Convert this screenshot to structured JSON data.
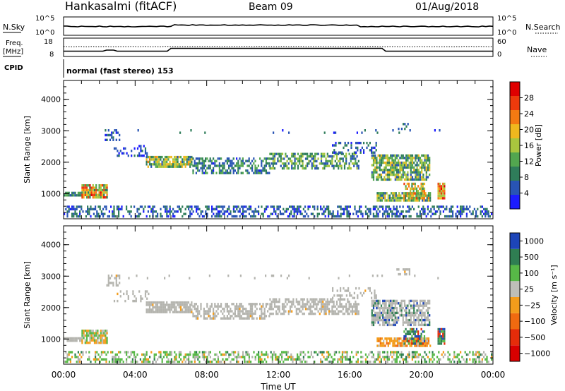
{
  "header": {
    "station": "Hankasalmi (fitACF)",
    "beam": "Beam 09",
    "date": "01/Aug/2018"
  },
  "params": {
    "nsky_label": "N.Sky",
    "nsearch_label": "N.Search",
    "nsky_ticks": [
      "10^5",
      "10^0"
    ],
    "nsearch_ticks": [
      "10^5",
      "10^0"
    ],
    "freq_label_1": "Freq.",
    "freq_label_2": "[MHz]",
    "freq_ticks": [
      "18",
      "8"
    ],
    "nave_label": "Nave",
    "nave_ticks": [
      "60",
      "0"
    ],
    "cpid_label": "CPID",
    "cpid_text": "normal (fast stereo) 153"
  },
  "colors": {
    "power": [
      "#1c1cff",
      "#2854b4",
      "#2f7d5a",
      "#52a64f",
      "#a9c63e",
      "#f0b81e",
      "#f47a12",
      "#ee3a0c",
      "#e00000"
    ],
    "velocity_pos": [
      "#1d45b8",
      "#2f7e52",
      "#57b847"
    ],
    "velocity_zero": "#bebeb8",
    "velocity_neg": [
      "#f39c1b",
      "#f06a10",
      "#e52c0a",
      "#d80000"
    ],
    "ground_scatter": "#b4b4ae"
  },
  "chart_data": [
    {
      "type": "heatmap",
      "name": "power",
      "ylabel": "Slant Range [km]",
      "yticks": [
        "1000",
        "2000",
        "3000",
        "4000"
      ],
      "ylim": [
        200,
        4600
      ],
      "xlim": [
        0,
        24
      ],
      "colorbar_label": "Power [dB]",
      "colorbar_ticks": [
        "4",
        "8",
        "12",
        "16",
        "20",
        "24",
        "28"
      ],
      "colorbar_range": [
        0,
        32
      ],
      "scatter_regions": [
        {
          "t0": 0.0,
          "t1": 24.0,
          "r0": 250,
          "r1": 620,
          "density": 0.45,
          "p": [
            2,
            10
          ]
        },
        {
          "t0": 0.0,
          "t1": 1.0,
          "r0": 880,
          "r1": 1060,
          "density": 0.85,
          "p": [
            4,
            12
          ]
        },
        {
          "t0": 1.0,
          "t1": 2.5,
          "r0": 820,
          "r1": 1300,
          "density": 0.9,
          "p": [
            8,
            30
          ]
        },
        {
          "t0": 2.3,
          "t1": 3.2,
          "r0": 2700,
          "r1": 3050,
          "density": 0.5,
          "p": [
            3,
            10
          ]
        },
        {
          "t0": 2.8,
          "t1": 4.8,
          "r0": 2150,
          "r1": 2550,
          "density": 0.25,
          "p": [
            2,
            8
          ]
        },
        {
          "t0": 4.6,
          "t1": 7.2,
          "r0": 1850,
          "r1": 2200,
          "density": 0.85,
          "p": [
            6,
            22
          ]
        },
        {
          "t0": 7.2,
          "t1": 11.5,
          "r0": 1650,
          "r1": 2150,
          "density": 0.55,
          "p": [
            3,
            14
          ]
        },
        {
          "t0": 11.5,
          "t1": 16.5,
          "r0": 1750,
          "r1": 2300,
          "density": 0.6,
          "p": [
            4,
            18
          ]
        },
        {
          "t0": 15.0,
          "t1": 17.5,
          "r0": 2250,
          "r1": 2650,
          "density": 0.35,
          "p": [
            2,
            10
          ]
        },
        {
          "t0": 17.2,
          "t1": 20.5,
          "r0": 1400,
          "r1": 2250,
          "density": 0.75,
          "p": [
            5,
            20
          ]
        },
        {
          "t0": 17.5,
          "t1": 20.5,
          "r0": 750,
          "r1": 1050,
          "density": 0.85,
          "p": [
            6,
            22
          ]
        },
        {
          "t0": 19.0,
          "t1": 20.2,
          "r0": 850,
          "r1": 1350,
          "density": 0.6,
          "p": [
            10,
            26
          ]
        },
        {
          "t0": 20.9,
          "t1": 21.3,
          "r0": 800,
          "r1": 1350,
          "density": 0.9,
          "p": [
            14,
            30
          ]
        },
        {
          "t0": 18.6,
          "t1": 19.4,
          "r0": 3000,
          "r1": 3250,
          "density": 0.4,
          "p": [
            3,
            9
          ]
        },
        {
          "t0": 3.0,
          "t1": 22.0,
          "r0": 2900,
          "r1": 3050,
          "density": 0.05,
          "p": [
            2,
            8
          ]
        }
      ]
    },
    {
      "type": "heatmap",
      "name": "velocity",
      "ylabel": "Slant Range [km]",
      "yticks": [
        "1000",
        "2000",
        "3000",
        "4000"
      ],
      "ylim": [
        200,
        4600
      ],
      "xlim": [
        0,
        24
      ],
      "xticks": [
        "00:00",
        "04:00",
        "08:00",
        "12:00",
        "16:00",
        "20:00",
        "00:00"
      ],
      "xlabel": "Time UT",
      "colorbar_label": "Velocity [m s⁻¹]",
      "colorbar_ticks": [
        "1000",
        "500",
        "100",
        "25",
        "−25",
        "−100",
        "−500",
        "−1000"
      ],
      "scatter_regions": [
        {
          "t0": 0.0,
          "t1": 24.0,
          "r0": 250,
          "r1": 620,
          "density": 0.45,
          "v": "ground_mixed"
        },
        {
          "t0": 0.0,
          "t1": 1.0,
          "r0": 880,
          "r1": 1060,
          "density": 0.85,
          "v": "gs"
        },
        {
          "t0": 1.0,
          "t1": 2.5,
          "r0": 820,
          "r1": 1300,
          "density": 0.9,
          "v": "neg_mixed"
        },
        {
          "t0": 2.3,
          "t1": 3.2,
          "r0": 2700,
          "r1": 3050,
          "density": 0.5,
          "v": "gs"
        },
        {
          "t0": 2.8,
          "t1": 4.8,
          "r0": 2150,
          "r1": 2550,
          "density": 0.25,
          "v": "gs"
        },
        {
          "t0": 4.6,
          "t1": 7.2,
          "r0": 1850,
          "r1": 2200,
          "density": 0.85,
          "v": "gs"
        },
        {
          "t0": 7.2,
          "t1": 11.5,
          "r0": 1650,
          "r1": 2150,
          "density": 0.55,
          "v": "gs"
        },
        {
          "t0": 11.5,
          "t1": 16.5,
          "r0": 1750,
          "r1": 2300,
          "density": 0.6,
          "v": "gs"
        },
        {
          "t0": 15.0,
          "t1": 17.5,
          "r0": 2250,
          "r1": 2650,
          "density": 0.35,
          "v": "gs"
        },
        {
          "t0": 17.2,
          "t1": 20.5,
          "r0": 1400,
          "r1": 2250,
          "density": 0.75,
          "v": "gs_pos"
        },
        {
          "t0": 17.5,
          "t1": 20.5,
          "r0": 750,
          "r1": 1050,
          "density": 0.85,
          "v": "neg"
        },
        {
          "t0": 19.0,
          "t1": 20.2,
          "r0": 850,
          "r1": 1350,
          "density": 0.6,
          "v": "pos_mixed"
        },
        {
          "t0": 20.9,
          "t1": 21.3,
          "r0": 800,
          "r1": 1350,
          "density": 0.9,
          "v": "pos_mixed"
        },
        {
          "t0": 18.6,
          "t1": 19.4,
          "r0": 3000,
          "r1": 3250,
          "density": 0.4,
          "v": "gs"
        },
        {
          "t0": 3.0,
          "t1": 22.0,
          "r0": 2900,
          "r1": 3050,
          "density": 0.05,
          "v": "gs"
        }
      ]
    }
  ]
}
